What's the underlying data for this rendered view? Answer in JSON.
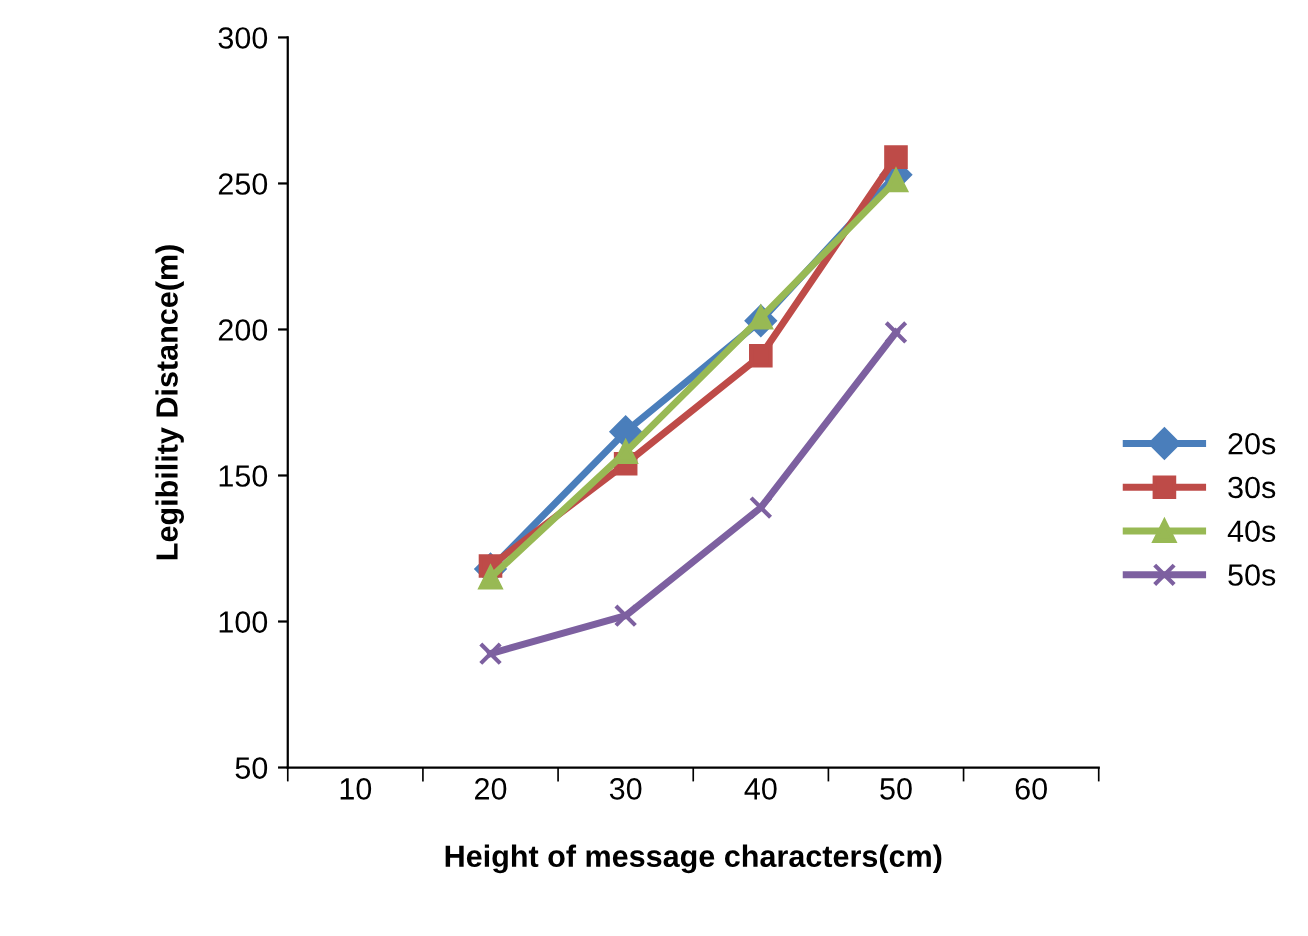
{
  "chart_data": {
    "type": "line",
    "xlabel": "Height of message characters(cm)",
    "ylabel": "Legibility Distance(m)",
    "categories": [
      "10",
      "20",
      "30",
      "40",
      "50",
      "60"
    ],
    "series": [
      {
        "name": "20s",
        "color": "#4a7ebb",
        "marker": "diamond",
        "values": [
          null,
          118,
          165,
          203,
          253,
          null
        ]
      },
      {
        "name": "30s",
        "color": "#be4b48",
        "marker": "square",
        "values": [
          null,
          119,
          154,
          191,
          259,
          null
        ]
      },
      {
        "name": "40s",
        "color": "#98b954",
        "marker": "triangle",
        "values": [
          null,
          115,
          158,
          204,
          251,
          null
        ]
      },
      {
        "name": "50s",
        "color": "#7d60a0",
        "marker": "cross",
        "values": [
          null,
          89,
          102,
          139,
          199,
          null
        ]
      }
    ],
    "ylim": [
      50,
      300
    ],
    "yticks": [
      50,
      100,
      150,
      200,
      250,
      300
    ],
    "grid": false,
    "legend": "right",
    "line_style": "solid"
  }
}
